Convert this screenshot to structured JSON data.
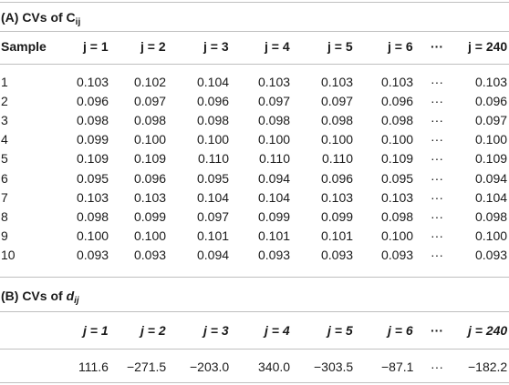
{
  "section_a": {
    "title_prefix": "(A) CVs of C",
    "title_sub": "ij",
    "headers": [
      "Sample",
      "j = 1",
      "j = 2",
      "j = 3",
      "j = 4",
      "j = 5",
      "j = 6",
      "···",
      "j = 240"
    ],
    "rows": [
      [
        "1",
        "0.103",
        "0.102",
        "0.104",
        "0.103",
        "0.103",
        "0.103",
        "···",
        "0.103"
      ],
      [
        "2",
        "0.096",
        "0.097",
        "0.096",
        "0.097",
        "0.097",
        "0.096",
        "···",
        "0.096"
      ],
      [
        "3",
        "0.098",
        "0.098",
        "0.098",
        "0.098",
        "0.098",
        "0.098",
        "···",
        "0.097"
      ],
      [
        "4",
        "0.099",
        "0.100",
        "0.100",
        "0.100",
        "0.100",
        "0.100",
        "···",
        "0.100"
      ],
      [
        "5",
        "0.109",
        "0.109",
        "0.110",
        "0.110",
        "0.110",
        "0.109",
        "···",
        "0.109"
      ],
      [
        "6",
        "0.095",
        "0.096",
        "0.095",
        "0.094",
        "0.096",
        "0.095",
        "···",
        "0.094"
      ],
      [
        "7",
        "0.103",
        "0.103",
        "0.104",
        "0.104",
        "0.103",
        "0.103",
        "···",
        "0.104"
      ],
      [
        "8",
        "0.098",
        "0.099",
        "0.097",
        "0.099",
        "0.099",
        "0.098",
        "···",
        "0.098"
      ],
      [
        "9",
        "0.100",
        "0.100",
        "0.101",
        "0.101",
        "0.101",
        "0.100",
        "···",
        "0.100"
      ],
      [
        "10",
        "0.093",
        "0.093",
        "0.094",
        "0.093",
        "0.093",
        "0.093",
        "···",
        "0.093"
      ]
    ]
  },
  "section_b": {
    "title_prefix": "(B) CVs of ",
    "title_italic": "dij",
    "headers": [
      "j = 1",
      "j = 2",
      "j = 3",
      "j = 4",
      "j = 5",
      "j = 6",
      "···",
      "j = 240"
    ],
    "values": [
      "111.6",
      "−271.5",
      "−203.0",
      "340.0",
      "−303.5",
      "−87.1",
      "···",
      "−182.2"
    ]
  }
}
